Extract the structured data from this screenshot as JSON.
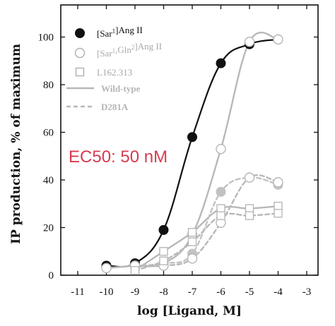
{
  "chart_data": {
    "type": "line",
    "xlabel": "log [Ligand, M]",
    "ylabel": "IP production, % of  maximum",
    "xlim": [
      -12,
      -3
    ],
    "ylim": [
      0,
      105
    ],
    "x_ticks": [
      -11,
      -10,
      -9,
      -8,
      -7,
      -6,
      -5,
      -4,
      -3
    ],
    "y_ticks": [
      0,
      20,
      40,
      60,
      80,
      100
    ],
    "grid": false,
    "legend_position": "top-left",
    "annotation": "EC50: 50 nM",
    "series": [
      {
        "name": "[Sar¹]Ang II",
        "receptor": "Wild-type",
        "marker": "filled-circle",
        "color": "#111111",
        "x": [
          -10,
          -9,
          -8,
          -7,
          -6,
          -5,
          -4
        ],
        "y": [
          4,
          5,
          19,
          58,
          89,
          97,
          99
        ]
      },
      {
        "name": "[Sar¹,Gln²]Ang II",
        "receptor": "Wild-type",
        "marker": "open-circle",
        "color": "#b8b8b8",
        "x": [
          -10,
          -9,
          -8,
          -7,
          -6,
          -5,
          -4
        ],
        "y": [
          3,
          4,
          5,
          17,
          53,
          98,
          99
        ]
      },
      {
        "name": "L162.313",
        "receptor": "Wild-type",
        "marker": "open-square",
        "color": "#b8b8b8",
        "x": [
          -9,
          -8,
          -7,
          -6,
          -5,
          -4
        ],
        "y": [
          2,
          10,
          18,
          28,
          28,
          29
        ]
      },
      {
        "name": "[Sar¹]Ang II",
        "receptor": "D281A",
        "marker": "filled-circle",
        "color": "#c2c2c2",
        "x": [
          -9,
          -8,
          -7,
          -6,
          -5,
          -4
        ],
        "y": [
          4,
          5,
          9,
          35,
          41,
          38
        ]
      },
      {
        "name": "[Sar¹,Gln²]Ang II",
        "receptor": "D281A",
        "marker": "open-circle",
        "color": "#b8b8b8",
        "x": [
          -9,
          -8,
          -7,
          -6,
          -5,
          -4
        ],
        "y": [
          4,
          4,
          7,
          22,
          41,
          39
        ]
      },
      {
        "name": "L162.313",
        "receptor": "D281A",
        "marker": "open-square",
        "color": "#b8b8b8",
        "x": [
          -9,
          -8,
          -7,
          -6,
          -5,
          -4
        ],
        "y": [
          2,
          6,
          14,
          25,
          25,
          26
        ]
      }
    ],
    "legend": {
      "markers": [
        {
          "label_pre": "[Sar",
          "label_sup": "1",
          "label_post": "]Ang II",
          "marker": "filled-circle",
          "color": "#111111"
        },
        {
          "label_pre": "[Sar",
          "label_sup": "1",
          "label_mid": ",Gln",
          "label_sup2": "2",
          "label_post": "]Ang II",
          "marker": "open-circle",
          "color": "#b0b0b0"
        },
        {
          "label_pre": "L162.313",
          "marker": "open-square",
          "color": "#b0b0b0"
        }
      ],
      "lines": [
        {
          "label": "Wild-type",
          "style": "solid",
          "color": "#b8b8b8"
        },
        {
          "label": "D281A",
          "style": "dashed",
          "color": "#b8b8b8"
        }
      ]
    }
  }
}
